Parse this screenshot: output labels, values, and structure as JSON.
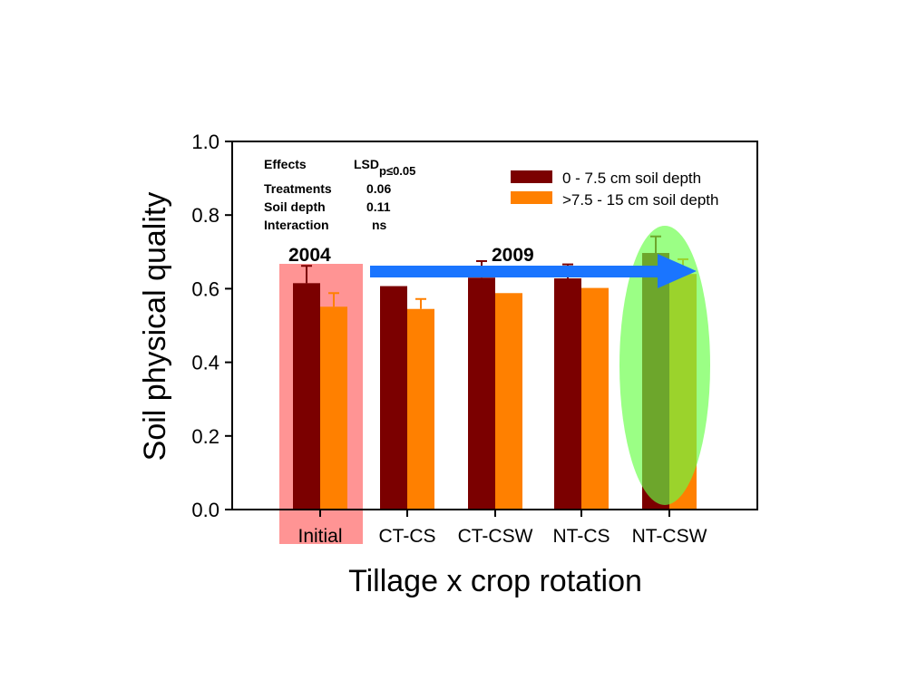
{
  "chart_data": {
    "type": "bar",
    "categories": [
      "Initial",
      "CT-CS",
      "CT-CSW",
      "NT-CS",
      "NT-CSW"
    ],
    "series": [
      {
        "name": "0 - 7.5 cm soil depth",
        "color": "#7b0000",
        "values": [
          0.615,
          0.607,
          0.63,
          0.628,
          0.697
        ],
        "errors": [
          0.047,
          0.0,
          0.045,
          0.038,
          0.045
        ]
      },
      {
        "name": ">7.5 - 15 cm soil depth",
        "color": "#ff8000",
        "values": [
          0.551,
          0.545,
          0.588,
          0.602,
          0.64
        ],
        "errors": [
          0.037,
          0.027,
          0.0,
          0.0,
          0.04
        ]
      }
    ],
    "xlabel": "Tillage x crop rotation",
    "ylabel": "Soil physical quality",
    "ylim": [
      0,
      1.0
    ],
    "yticks": [
      "0.0",
      "0.2",
      "0.4",
      "0.6",
      "0.8",
      "1.0"
    ],
    "legend_position": "top-right",
    "effects_table": {
      "header": [
        "Effects",
        "LSD"
      ],
      "lsd_subscript": "p≤0.05",
      "rows": [
        [
          "Treatments",
          "0.06"
        ],
        [
          "Soil depth",
          "0.11"
        ],
        [
          "Interaction",
          "ns"
        ]
      ]
    },
    "annotations": {
      "year_start": "2004",
      "year_end": "2009",
      "initial_highlight_color": "#ff6666",
      "nt_csw_highlight_color": "#66ff44",
      "arrow_color": "#1a75ff"
    }
  }
}
